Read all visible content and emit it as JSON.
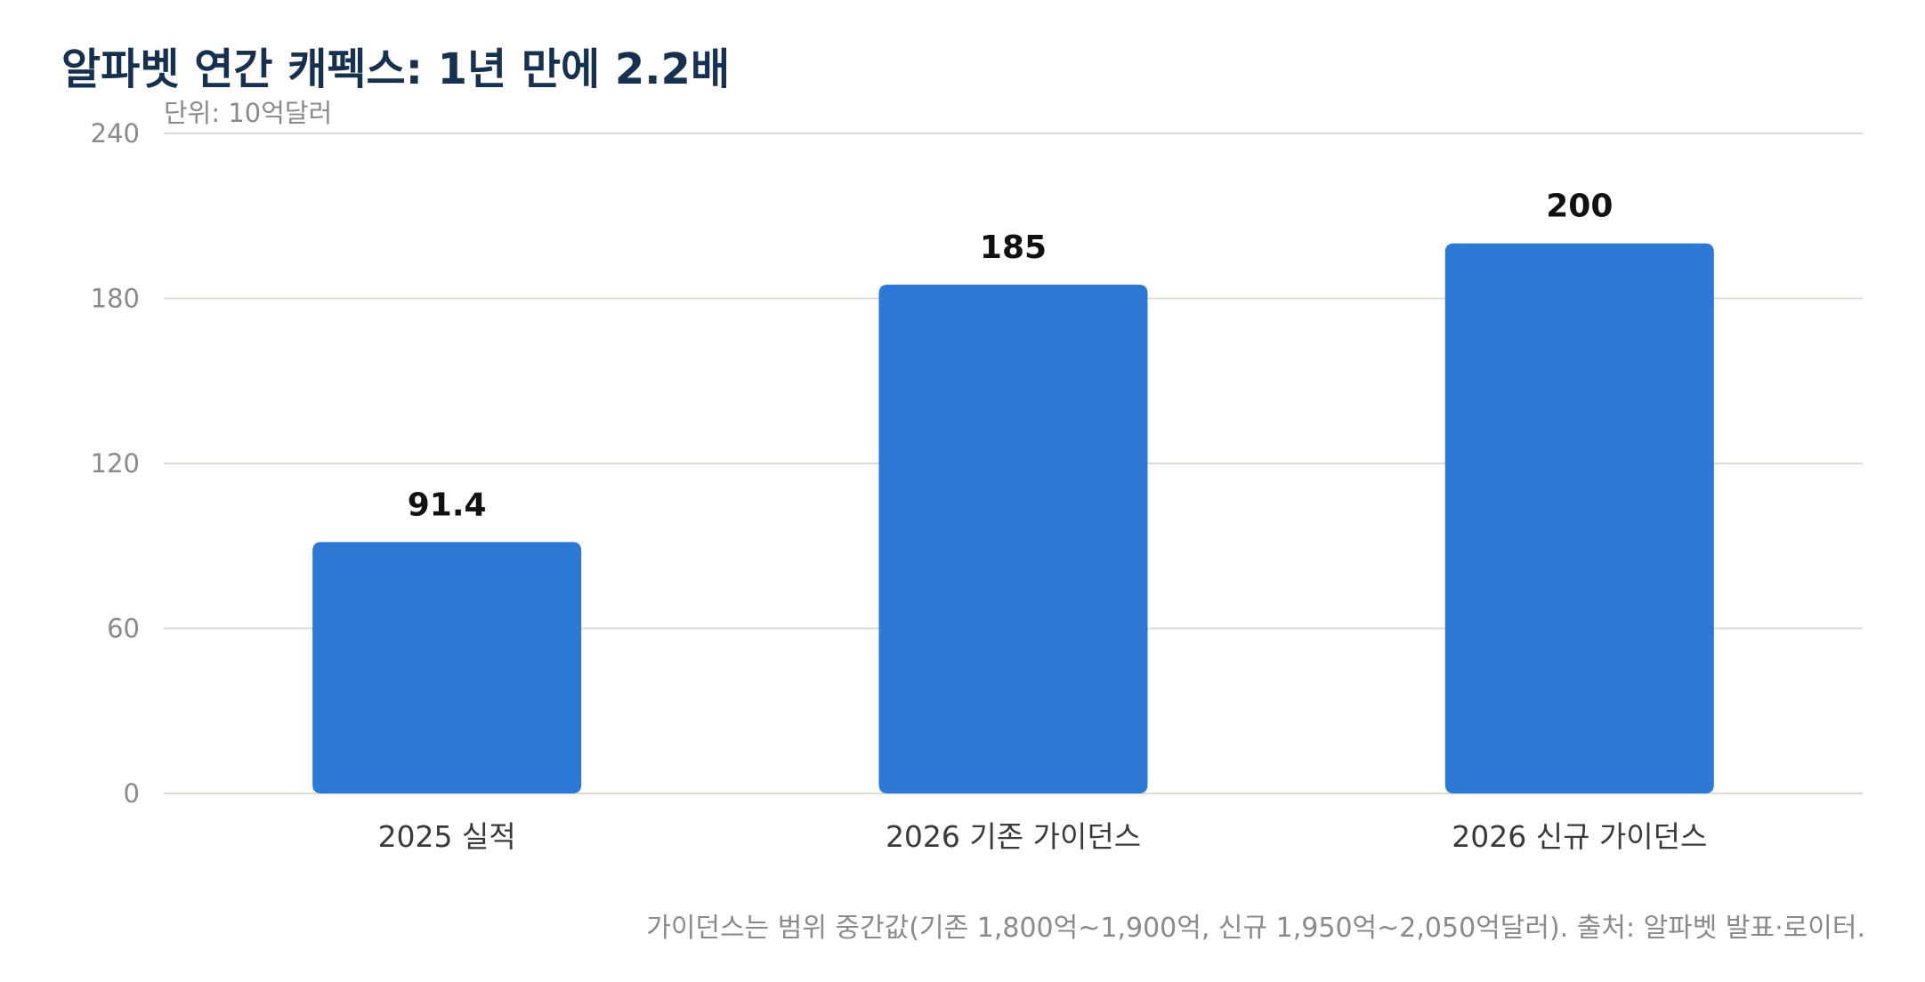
{
  "title": "알파벳 연간 캐펙스: 1년 만에 2.2배",
  "unit": "단위: 10억달러",
  "footnote": "가이던스는 범위 중간값(기존 1,800억~1,900억, 신규 1,950억~2,050억달러). 출처: 알파벳 발표·로이터.",
  "colors": {
    "bar": "#2b78d6",
    "grid": "#dcdcd4",
    "title": "#16314f"
  },
  "chart_data": {
    "type": "bar",
    "categories": [
      "2025 실적",
      "2026 기존 가이던스",
      "2026 신규 가이던스"
    ],
    "values": [
      91.4,
      185,
      200
    ],
    "value_labels": [
      "91.4",
      "185",
      "200"
    ],
    "ylim": [
      0,
      240
    ],
    "yticks": [
      0,
      60,
      120,
      180,
      240
    ],
    "grid": true,
    "legend": "none"
  }
}
